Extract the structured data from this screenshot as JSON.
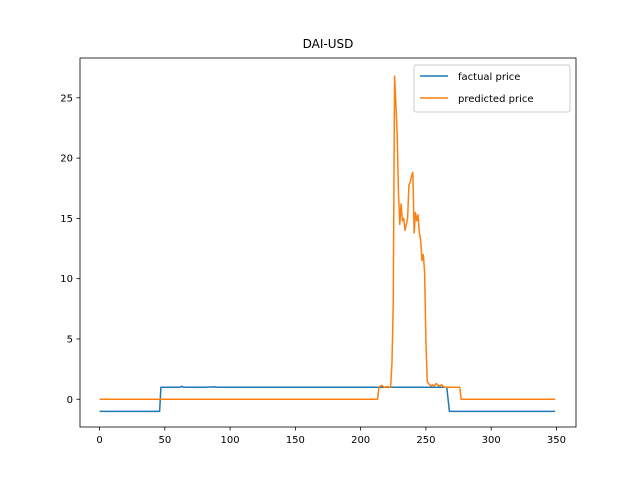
{
  "chart_data": {
    "type": "line",
    "title": "DAI-USD",
    "xlabel": "",
    "ylabel": "",
    "xlim": [
      -15,
      365
    ],
    "ylim": [
      -2.3,
      28.3
    ],
    "xticks": [
      0,
      50,
      100,
      150,
      200,
      250,
      300,
      350
    ],
    "yticks": [
      0,
      5,
      10,
      15,
      20,
      25
    ],
    "grid": false,
    "legend_position": "top-right",
    "series": [
      {
        "name": "factual price",
        "color": "#1f77b4",
        "x": [
          0,
          46,
          47,
          60,
          62,
          63,
          64,
          70,
          80,
          88,
          90,
          100,
          150,
          200,
          250,
          266,
          268,
          300,
          349
        ],
        "y": [
          -1,
          -1,
          1,
          1,
          1.02,
          1.08,
          1.0,
          1.0,
          1.0,
          1.03,
          1.0,
          1.0,
          1.0,
          1.0,
          1.0,
          1.0,
          -1,
          -1,
          -1
        ]
      },
      {
        "name": "predicted price",
        "color": "#ff7f0e",
        "x": [
          0,
          100,
          200,
          213,
          214,
          216,
          218,
          220,
          223,
          224,
          225,
          226,
          227,
          228,
          229,
          230,
          231,
          232,
          233,
          234,
          235,
          236,
          237,
          238,
          239,
          240,
          241,
          242,
          243,
          244,
          245,
          246,
          247,
          248,
          249,
          250,
          251,
          252,
          253,
          254,
          255,
          256,
          257,
          258,
          260,
          262,
          264,
          266,
          268,
          270,
          276,
          277,
          278,
          279,
          300,
          349
        ],
        "y": [
          0,
          0,
          0,
          0,
          1.0,
          1.15,
          1.0,
          1.05,
          1.0,
          3.0,
          8.0,
          26.8,
          24.5,
          22.0,
          17.0,
          14.5,
          16.2,
          14.8,
          15.0,
          14.0,
          14.5,
          15.0,
          17.8,
          18.0,
          18.5,
          18.8,
          13.8,
          15.5,
          14.8,
          15.3,
          13.8,
          13.2,
          11.5,
          12.0,
          10.6,
          5.0,
          1.5,
          1.3,
          1.2,
          1.1,
          1.2,
          1.1,
          1.2,
          1.3,
          1.1,
          1.2,
          1.0,
          1.0,
          1.0,
          1.0,
          1.0,
          0,
          0,
          0,
          0,
          0
        ]
      }
    ]
  }
}
